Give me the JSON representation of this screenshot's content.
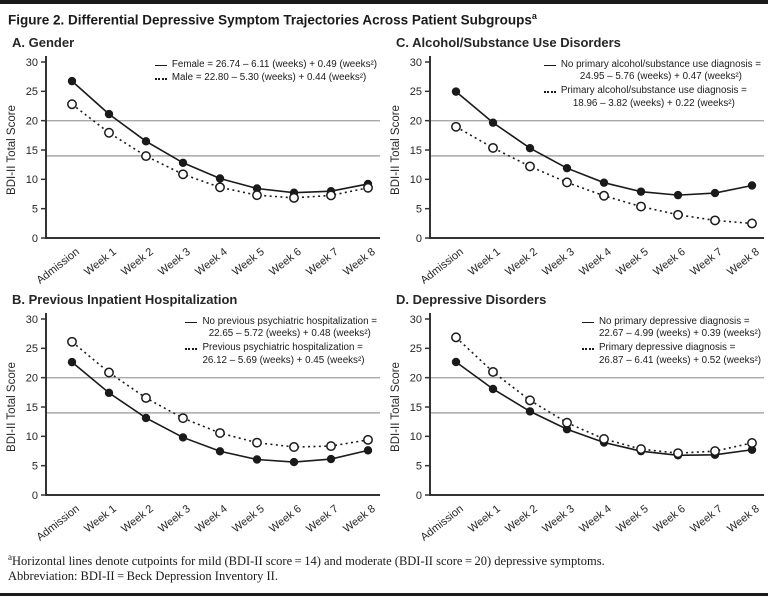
{
  "header": {
    "title": "Figure 2. Differential Depressive Symptom Trajectories Across Patient Subgroups",
    "title_sup": "a"
  },
  "cutpoints": {
    "mild": 14,
    "moderate": 20,
    "line_color": "#a8a8a8"
  },
  "chart_data": [
    {
      "id": "A",
      "type": "line",
      "title": "A. Gender",
      "ylabel": "BDI-II Total Score",
      "ylim": [
        0,
        30
      ],
      "yticks": [
        0,
        5,
        10,
        15,
        20,
        25,
        30
      ],
      "reference_lines": [
        14,
        20
      ],
      "legend_position": "top-right",
      "grid": false,
      "categories": [
        "Admission",
        "Week 1",
        "Week 2",
        "Week 3",
        "Week 4",
        "Week 5",
        "Week 6",
        "Week 7",
        "Week 8"
      ],
      "series": [
        {
          "name": "Female",
          "style": "solid",
          "marker": "filled",
          "legend_line1": "Female = 26.74 – 6.11 (weeks) + 0.49 (weeks²)",
          "legend_line2": "",
          "values": [
            26.74,
            21.12,
            16.48,
            12.82,
            10.14,
            8.44,
            7.72,
            7.98,
            9.22
          ]
        },
        {
          "name": "Male",
          "style": "dotted",
          "marker": "open",
          "legend_line1": "Male = 22.80 – 5.30 (weeks) + 0.44 (weeks²)",
          "legend_line2": "",
          "values": [
            22.8,
            17.94,
            13.96,
            10.86,
            8.64,
            7.3,
            6.84,
            7.26,
            8.56
          ]
        }
      ]
    },
    {
      "id": "B",
      "type": "line",
      "title": "B. Previous Inpatient Hospitalization",
      "ylabel": "BDI-II Total Score",
      "ylim": [
        0,
        30
      ],
      "yticks": [
        0,
        5,
        10,
        15,
        20,
        25,
        30
      ],
      "reference_lines": [
        14,
        20
      ],
      "legend_position": "top-right",
      "grid": false,
      "categories": [
        "Admission",
        "Week 1",
        "Week 2",
        "Week 3",
        "Week 4",
        "Week 5",
        "Week 6",
        "Week 7",
        "Week 8"
      ],
      "series": [
        {
          "name": "No previous psychiatric hospitalization",
          "style": "solid",
          "marker": "filled",
          "legend_line1": "No previous psychiatric hospitalization =",
          "legend_line2": "22.65 – 5.72 (weeks) + 0.48 (weeks²)",
          "values": [
            22.65,
            17.41,
            13.13,
            9.81,
            7.45,
            6.05,
            5.61,
            6.13,
            7.61
          ]
        },
        {
          "name": "Previous psychiatric hospitalization",
          "style": "dotted",
          "marker": "open",
          "legend_line1": "Previous psychiatric hospitalization =",
          "legend_line2": "26.12 – 5.69 (weeks) + 0.45 (weeks²)",
          "values": [
            26.12,
            20.88,
            16.54,
            13.1,
            10.56,
            8.92,
            8.18,
            8.34,
            9.4
          ]
        }
      ]
    },
    {
      "id": "C",
      "type": "line",
      "title": "C. Alcohol/Substance Use Disorders",
      "ylabel": "BDI-II Total Score",
      "ylim": [
        0,
        30
      ],
      "yticks": [
        0,
        5,
        10,
        15,
        20,
        25,
        30
      ],
      "reference_lines": [
        14,
        20
      ],
      "legend_position": "top-right",
      "grid": false,
      "categories": [
        "Admission",
        "Week 1",
        "Week 2",
        "Week 3",
        "Week 4",
        "Week 5",
        "Week 6",
        "Week 7",
        "Week 8"
      ],
      "series": [
        {
          "name": "No primary alcohol/substance use diagnosis",
          "style": "solid",
          "marker": "filled",
          "legend_line1": "No primary alcohol/substance use diagnosis =",
          "legend_line2": "24.95 – 5.76 (weeks) + 0.47 (weeks²)",
          "values": [
            24.95,
            19.66,
            15.31,
            11.9,
            9.43,
            7.9,
            7.31,
            7.66,
            8.95
          ]
        },
        {
          "name": "Primary alcohol/substance use diagnosis",
          "style": "dotted",
          "marker": "open",
          "legend_line1": "Primary alcohol/substance use diagnosis =",
          "legend_line2": "18.96 – 3.82 (weeks) + 0.22 (weeks²)",
          "values": [
            18.96,
            15.36,
            12.2,
            9.48,
            7.2,
            5.36,
            3.96,
            3.0,
            2.48
          ]
        }
      ]
    },
    {
      "id": "D",
      "type": "line",
      "title": "D. Depressive Disorders",
      "ylabel": "BDI-II Total Score",
      "ylim": [
        0,
        30
      ],
      "yticks": [
        0,
        5,
        10,
        15,
        20,
        25,
        30
      ],
      "reference_lines": [
        14,
        20
      ],
      "legend_position": "top-right",
      "grid": false,
      "categories": [
        "Admission",
        "Week 1",
        "Week 2",
        "Week 3",
        "Week 4",
        "Week 5",
        "Week 6",
        "Week 7",
        "Week 8"
      ],
      "series": [
        {
          "name": "No primary depressive diagnosis",
          "style": "solid",
          "marker": "filled",
          "legend_line1": "No primary depressive diagnosis =",
          "legend_line2": "22.67 – 4.99 (weeks) + 0.39 (weeks²)",
          "values": [
            22.67,
            18.07,
            14.25,
            11.21,
            8.95,
            7.47,
            6.77,
            6.85,
            7.71
          ]
        },
        {
          "name": "Primary depressive diagnosis",
          "style": "dotted",
          "marker": "open",
          "legend_line1": "Primary depressive diagnosis =",
          "legend_line2": "26.87 – 6.41 (weeks) + 0.52 (weeks²)",
          "values": [
            26.87,
            20.98,
            16.13,
            12.32,
            9.55,
            7.82,
            7.13,
            7.48,
            8.87
          ]
        }
      ]
    }
  ],
  "footer": {
    "note_sup": "a",
    "note": "Horizontal lines denote cutpoints for mild (BDI-II score = 14) and moderate (BDI-II score = 20) depressive symptoms.",
    "abbreviation": "Abbreviation: BDI-II = Beck Depression Inventory II."
  }
}
